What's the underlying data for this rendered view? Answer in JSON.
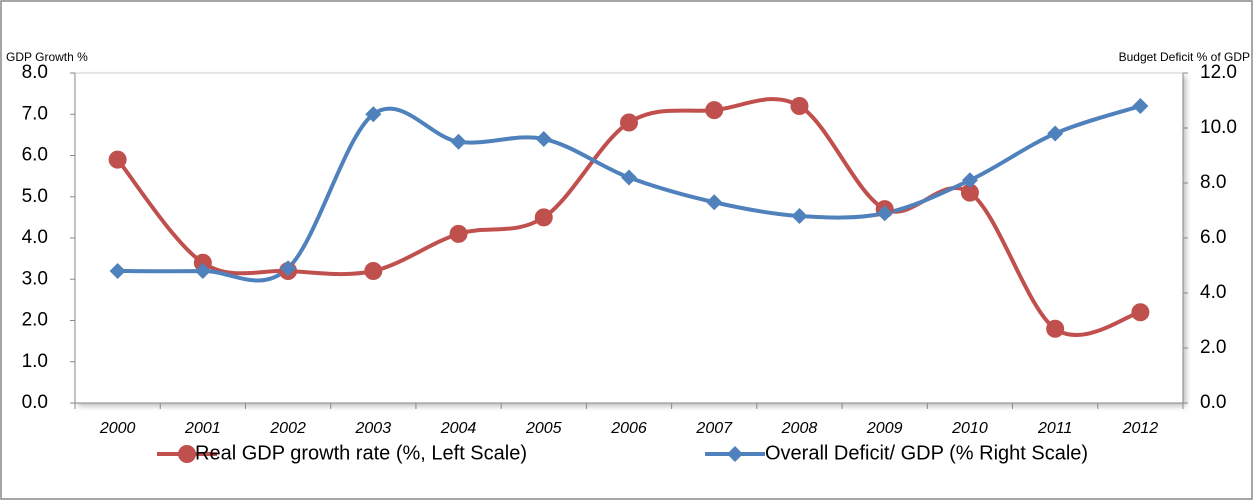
{
  "chart_data": {
    "type": "line",
    "y_label": "GDP Growth %",
    "y2_label": "Budget Deficit % of GDP",
    "categories": [
      "2000",
      "2001",
      "2002",
      "2003",
      "2004",
      "2005",
      "2006",
      "2007",
      "2008",
      "2009",
      "2010",
      "2011",
      "2012"
    ],
    "series": [
      {
        "name": "Real GDP growth rate (%, Left Scale)",
        "color": "#c0504d",
        "marker": "circle",
        "values": [
          5.9,
          3.4,
          3.2,
          3.2,
          4.1,
          4.5,
          6.8,
          7.1,
          7.2,
          4.7,
          5.1,
          1.8,
          2.2
        ]
      },
      {
        "name": "Overall Deficit/ GDP (% Right Scale)",
        "color": "#4f81bd",
        "marker": "diamond",
        "axis": "y2",
        "values": [
          4.8,
          4.8,
          4.9,
          10.5,
          9.5,
          9.6,
          8.2,
          7.3,
          6.8,
          6.9,
          8.1,
          9.8,
          10.8
        ]
      }
    ],
    "ylim": [
      0,
      8
    ],
    "yticks": [
      {
        "value": 0,
        "label": "0.0"
      },
      {
        "value": 1,
        "label": "1.0"
      },
      {
        "value": 2,
        "label": "2.0"
      },
      {
        "value": 3,
        "label": "3.0"
      },
      {
        "value": 4,
        "label": "4.0"
      },
      {
        "value": 5,
        "label": "5.0"
      },
      {
        "value": 6,
        "label": "6.0"
      },
      {
        "value": 7,
        "label": "7.0"
      },
      {
        "value": 8,
        "label": "8.0"
      }
    ],
    "y2lim": [
      0,
      12
    ],
    "y2ticks": [
      {
        "value": 0,
        "label": "0.0"
      },
      {
        "value": 2,
        "label": "2.0"
      },
      {
        "value": 4,
        "label": "4.0"
      },
      {
        "value": 6,
        "label": "6.0"
      },
      {
        "value": 8,
        "label": "8.0"
      },
      {
        "value": 10,
        "label": "10.0"
      },
      {
        "value": 12,
        "label": "12.0"
      }
    ],
    "legend": "bottom",
    "smooth": true
  }
}
